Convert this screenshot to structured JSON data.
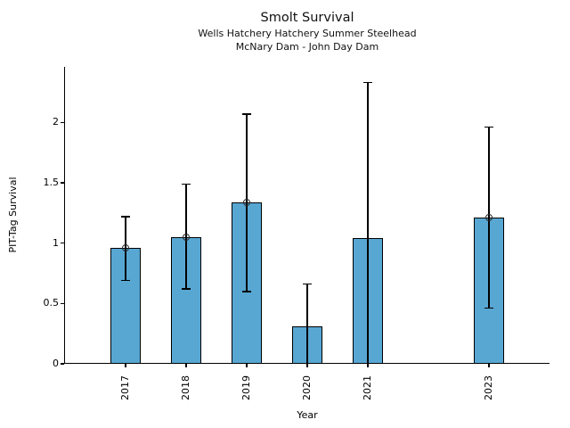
{
  "chart_data": {
    "type": "bar",
    "title": "Smolt Survival",
    "subtitle1": "Wells Hatchery Hatchery Summer Steelhead",
    "subtitle2": "McNary Dam - John Day Dam",
    "xlabel": "Year",
    "ylabel": "PIT-Tag Survival",
    "bar_color": "#58A7D3",
    "bar_edge_color": "#000000",
    "error_color": "#000000",
    "marker_edge_color": "#2a2a2a",
    "xlim": [
      2016,
      2024
    ],
    "ylim": [
      0,
      2.46
    ],
    "yticks": [
      0,
      0.5,
      1,
      1.5,
      2
    ],
    "legend": "none",
    "grid": false,
    "categories": [
      2017,
      2018,
      2019,
      2020,
      2021,
      2023
    ],
    "values": [
      0.96,
      1.05,
      1.34,
      0.31,
      1.04,
      1.21
    ],
    "points": [
      {
        "year": 2017,
        "value": 0.96,
        "err_low": 0.69,
        "err_high": 1.22,
        "marker": true
      },
      {
        "year": 2018,
        "value": 1.05,
        "err_low": 0.62,
        "err_high": 1.49,
        "marker": true
      },
      {
        "year": 2019,
        "value": 1.34,
        "err_low": 0.6,
        "err_high": 2.07,
        "marker": true
      },
      {
        "year": 2020,
        "value": 0.31,
        "err_low": 0.0,
        "err_high": 0.66,
        "marker": false
      },
      {
        "year": 2021,
        "value": 1.04,
        "err_low": 0.0,
        "err_high": 2.33,
        "marker": false
      },
      {
        "year": 2023,
        "value": 1.21,
        "err_low": 0.46,
        "err_high": 1.96,
        "marker": true
      }
    ]
  }
}
